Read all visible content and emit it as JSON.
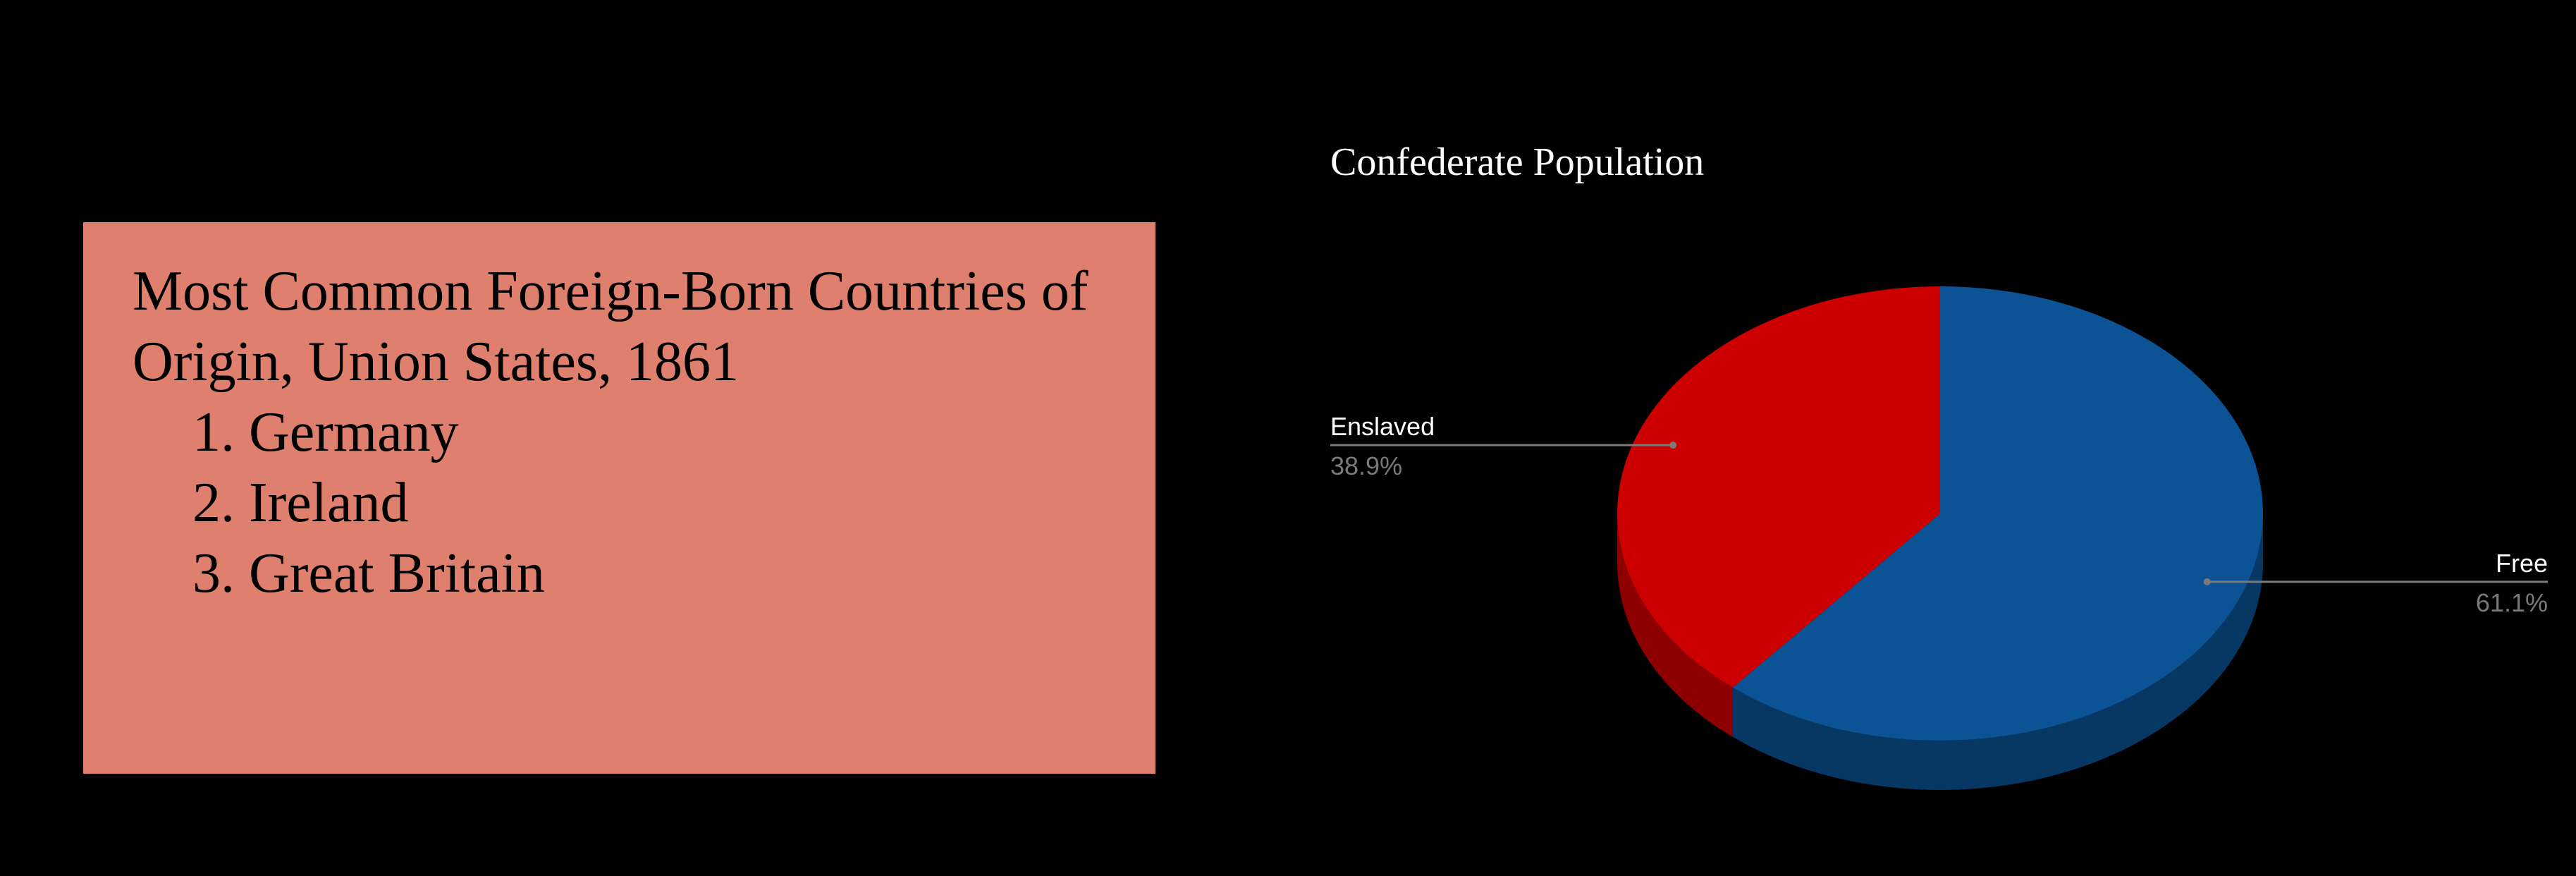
{
  "info_box": {
    "title": "Most Common Foreign-Born Countries of Origin, Union States, 1861",
    "items": [
      {
        "number": "1.",
        "label": "Germany"
      },
      {
        "number": "2.",
        "label": "Ireland"
      },
      {
        "number": "3.",
        "label": "Great Britain"
      }
    ],
    "background_color": "#df7f6d"
  },
  "chart_data": {
    "type": "pie",
    "style": "3d",
    "title": "Confederate Population",
    "slices": [
      {
        "name": "Free",
        "value": 61.1,
        "label": "61.1%",
        "color": "#0b5394",
        "side_color": "#073763"
      },
      {
        "name": "Enslaved",
        "value": 38.9,
        "label": "38.9%",
        "color": "#cc0000",
        "side_color": "#8e0000"
      }
    ],
    "legend": "none"
  }
}
